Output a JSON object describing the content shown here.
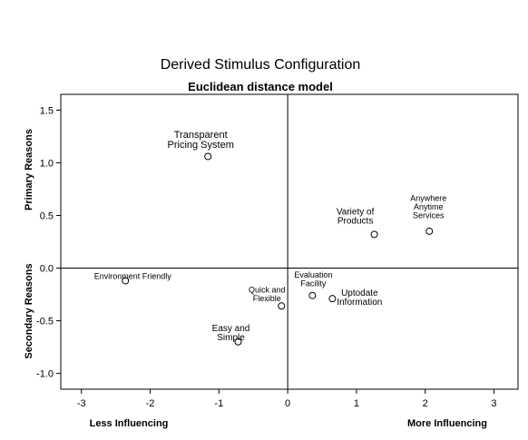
{
  "chart_data": {
    "type": "scatter",
    "title": "Derived Stimulus Configuration",
    "subtitle": "Euclidean distance model",
    "xlim": [
      -3.3,
      3.35
    ],
    "ylim": [
      -1.15,
      1.65
    ],
    "x_ticks": [
      "-3",
      "-2",
      "-1",
      "0",
      "1",
      "2",
      "3"
    ],
    "y_ticks": [
      "1.5",
      "1.0",
      "0.5",
      "0.0",
      "-0.5",
      "-1.0"
    ],
    "x_tick_values": [
      -3,
      -2,
      -1,
      0,
      1,
      2,
      3
    ],
    "y_tick_values": [
      1.5,
      1.0,
      0.5,
      0.0,
      -0.5,
      -1.0
    ],
    "x_axis_labels": {
      "left": "Less Influencing",
      "right": "More Influencing"
    },
    "y_axis_labels": {
      "top": "Primary Reasons",
      "bottom": "Secondary Reasons"
    },
    "grid": false,
    "reference_lines": {
      "x": 0,
      "y": 0
    },
    "points": [
      {
        "label": [
          "Transparent",
          "Pricing System"
        ],
        "x": -1.16,
        "y": 1.06
      },
      {
        "label": [
          "Variety of",
          "Products"
        ],
        "x": 1.26,
        "y": 0.32
      },
      {
        "label": [
          "Anywhere",
          "Anytime",
          "Services"
        ],
        "x": 2.06,
        "y": 0.35
      },
      {
        "label": [
          "Environment Friendly"
        ],
        "x": -2.36,
        "y": -0.12
      },
      {
        "label": [
          "Evaluation",
          "Facility"
        ],
        "x": 0.36,
        "y": -0.26
      },
      {
        "label": [
          "Uptodate",
          "Information"
        ],
        "x": 0.65,
        "y": -0.29
      },
      {
        "label": [
          "Quick and",
          "Flexible"
        ],
        "x": -0.09,
        "y": -0.36
      },
      {
        "label": [
          "Easy and",
          "Simple"
        ],
        "x": -0.72,
        "y": -0.7
      }
    ]
  }
}
